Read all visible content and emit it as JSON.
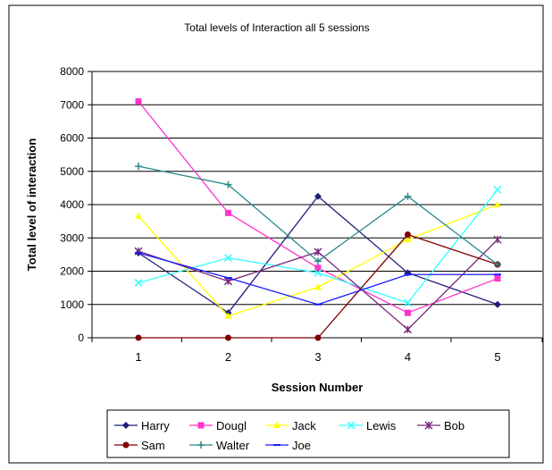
{
  "chart_data": {
    "type": "line",
    "title": "Total levels of Interaction all 5 sessions",
    "xlabel": "Session Number",
    "ylabel": "Total level of interaction",
    "x": [
      1,
      2,
      3,
      4,
      5
    ],
    "ylim": [
      0,
      8000
    ],
    "yticks": [
      0,
      1000,
      2000,
      3000,
      4000,
      5000,
      6000,
      7000,
      8000
    ],
    "grid": true,
    "legend_position": "bottom",
    "series": [
      {
        "name": "Harry",
        "color": "#1f1f7a",
        "marker": "diamond",
        "values": [
          2550,
          750,
          4250,
          1950,
          1000
        ]
      },
      {
        "name": "Dougl",
        "color": "#ff33cc",
        "marker": "square",
        "values": [
          7100,
          3750,
          2100,
          750,
          1780
        ]
      },
      {
        "name": "Jack",
        "color": "#ffff00",
        "marker": "triangle",
        "values": [
          3650,
          650,
          1520,
          2950,
          4000
        ]
      },
      {
        "name": "Lewis",
        "color": "#33ffff",
        "marker": "x",
        "values": [
          1650,
          2400,
          1950,
          1050,
          4450
        ]
      },
      {
        "name": "Bob",
        "color": "#7a2a7a",
        "marker": "star",
        "values": [
          2600,
          1700,
          2580,
          250,
          2950
        ]
      },
      {
        "name": "Sam",
        "color": "#800000",
        "marker": "circle",
        "values": [
          0,
          0,
          0,
          3100,
          2200
        ]
      },
      {
        "name": "Walter",
        "color": "#2a8a8a",
        "marker": "plus",
        "values": [
          5150,
          4600,
          2300,
          4250,
          2200
        ]
      },
      {
        "name": "Joe",
        "color": "#1a1aff",
        "marker": "dash",
        "values": [
          2550,
          1800,
          1000,
          1900,
          1900
        ]
      }
    ]
  }
}
